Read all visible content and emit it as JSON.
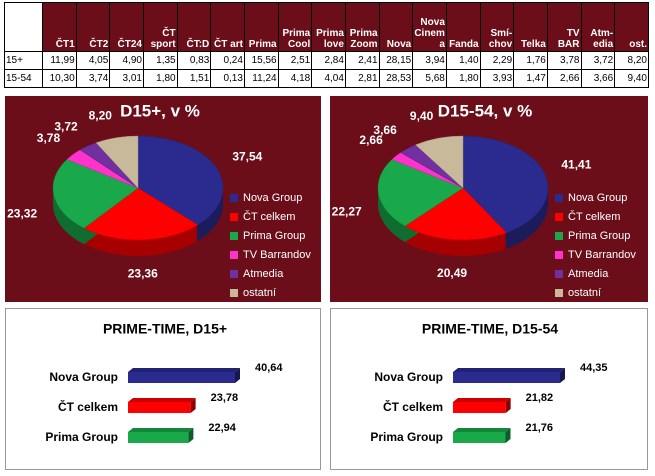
{
  "table": {
    "header": [
      "ČT1",
      "ČT2",
      "ČT24",
      "ČT sport",
      "ČT:D",
      "ČT art",
      "Prima",
      "Prima Cool",
      "Prima love",
      "Prima Zoom",
      "Nova",
      "Nova Cinema",
      "Fanda",
      "Smí-chov",
      "Telka",
      "TV BAR",
      "Atm-edia",
      "ost."
    ],
    "rows": [
      [
        "15+",
        "11,99",
        "4,05",
        "4,90",
        "1,35",
        "0,83",
        "0,24",
        "15,56",
        "2,51",
        "2,84",
        "2,41",
        "28,15",
        "3,94",
        "1,40",
        "2,29",
        "1,76",
        "3,78",
        "3,72",
        "8,20"
      ],
      [
        "15-54",
        "10,30",
        "3,74",
        "3,01",
        "1,80",
        "1,51",
        "0,13",
        "11,24",
        "4,18",
        "4,04",
        "2,81",
        "28,53",
        "5,68",
        "1,80",
        "3,93",
        "1,47",
        "2,66",
        "3,66",
        "9,40"
      ]
    ]
  },
  "chart_data": [
    {
      "type": "pie",
      "title": "D15+, v %",
      "categories": [
        "Nova Group",
        "ČT celkem",
        "Prima Group",
        "TV Barrandov",
        "Atmedia",
        "ostatní"
      ],
      "values": [
        37.54,
        23.36,
        23.32,
        3.78,
        3.72,
        8.2
      ],
      "value_labels": [
        "37,54",
        "23,36",
        "23,32",
        "3,78",
        "3,72",
        "8,20"
      ],
      "colors": [
        "#2b2b8f",
        "#ff0000",
        "#19a84a",
        "#ff33cc",
        "#7030a0",
        "#c8b99a"
      ]
    },
    {
      "type": "pie",
      "title": "D15-54, v %",
      "categories": [
        "Nova Group",
        "ČT celkem",
        "Prima Group",
        "TV Barrandov",
        "Atmedia",
        "ostatní"
      ],
      "values": [
        41.41,
        20.49,
        22.27,
        2.66,
        3.66,
        9.4
      ],
      "value_labels": [
        "41,41",
        "20,49",
        "22,27",
        "2,66",
        "3,66",
        "9,40"
      ],
      "colors": [
        "#2b2b8f",
        "#ff0000",
        "#19a84a",
        "#ff33cc",
        "#7030a0",
        "#c8b99a"
      ]
    },
    {
      "type": "hbar",
      "title": "PRIME-TIME, D15+",
      "categories": [
        "Nova Group",
        "ČT celkem",
        "Prima Group"
      ],
      "values": [
        40.64,
        23.78,
        22.94
      ],
      "value_labels": [
        "40,64",
        "23,78",
        "22,94"
      ],
      "colors": [
        "#2b2b8f",
        "#ff0000",
        "#19a84a"
      ]
    },
    {
      "type": "hbar",
      "title": "PRIME-TIME, D15-54",
      "categories": [
        "Nova Group",
        "ČT celkem",
        "Prima Group"
      ],
      "values": [
        44.35,
        21.82,
        21.76
      ],
      "value_labels": [
        "44,35",
        "21,82",
        "21,76"
      ],
      "colors": [
        "#2b2b8f",
        "#ff0000",
        "#19a84a"
      ]
    }
  ]
}
